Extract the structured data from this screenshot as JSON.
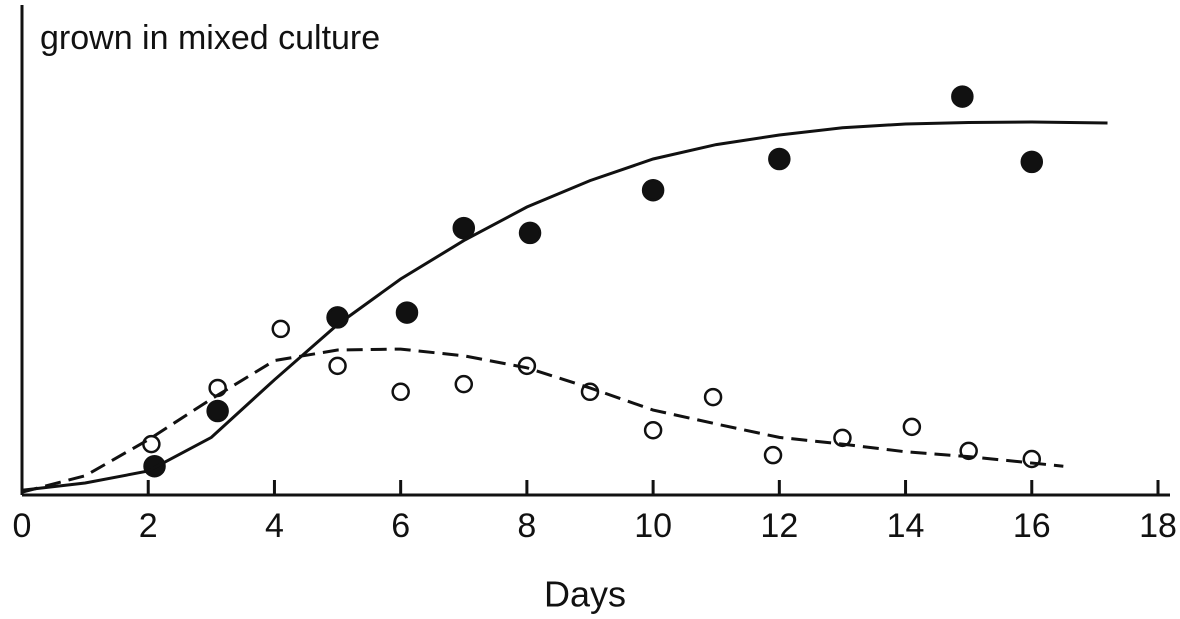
{
  "chart_data": {
    "type": "scatter",
    "title": "grown in mixed culture",
    "x_label": "Days",
    "xlim": [
      0,
      18
    ],
    "xticks": [
      0,
      2,
      4,
      6,
      8,
      10,
      12,
      14,
      16,
      18
    ],
    "ylim": [
      0,
      100
    ],
    "color": "#111111",
    "series": [
      {
        "style": "filled",
        "x": [
          2.1,
          3.1,
          5.0,
          6.1,
          7.0,
          8.05,
          10.0,
          12.0,
          14.9,
          16.0
        ],
        "values": [
          6,
          17.5,
          37,
          38,
          55.6,
          54.6,
          63.5,
          70,
          83,
          69.4
        ]
      },
      {
        "style": "open",
        "x": [
          2.05,
          3.1,
          4.1,
          5.0,
          6.0,
          7.0,
          8.0,
          9.0,
          10.0,
          10.95,
          11.9,
          13.0,
          14.1,
          15.0,
          16.0
        ],
        "values": [
          10.6,
          22.3,
          34.6,
          26.9,
          21.5,
          23.1,
          26.9,
          21.5,
          13.5,
          20.4,
          8.3,
          11.9,
          14.2,
          9.2,
          7.5
        ]
      },
      {
        "style": "solid",
        "x": [
          0,
          1,
          2,
          3,
          4,
          5,
          6,
          7,
          8,
          9,
          10,
          11,
          12,
          13,
          14,
          15,
          16,
          17.2
        ],
        "values": [
          1,
          2.5,
          5,
          12,
          24,
          35.5,
          45,
          53,
          60,
          65.5,
          70,
          73,
          75,
          76.5,
          77.3,
          77.6,
          77.7,
          77.5
        ]
      },
      {
        "style": "dashed",
        "x": [
          0,
          1,
          2,
          3,
          4,
          5,
          6,
          7,
          8,
          9,
          10,
          11,
          12,
          13,
          14,
          15,
          16.5
        ],
        "values": [
          0.6,
          4,
          11.5,
          20,
          28,
          30.2,
          30.4,
          29,
          26.5,
          22.3,
          17.7,
          14.8,
          12,
          10.6,
          9,
          8,
          6
        ]
      }
    ]
  }
}
